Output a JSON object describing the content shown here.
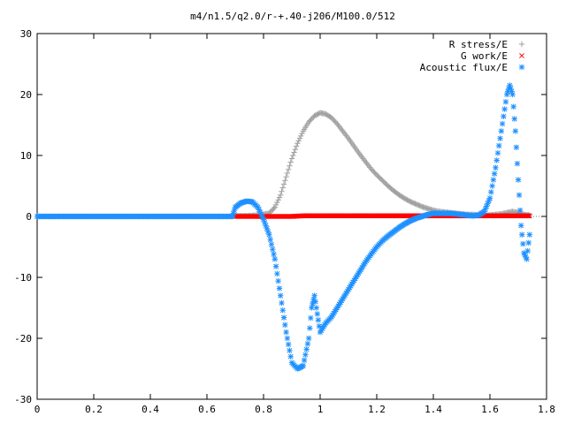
{
  "chart_data": {
    "type": "scatter",
    "title": "m4/n1.5/q2.0/r-+.40-j206/M100.0/512",
    "xlabel": "",
    "ylabel": "",
    "xlim": [
      0,
      1.8
    ],
    "ylim": [
      -30,
      30
    ],
    "x_ticks": [
      "0",
      "0.2",
      "0.4",
      "0.6",
      "0.8",
      "1",
      "1.2",
      "1.4",
      "1.6",
      "1.8"
    ],
    "y_ticks": [
      "30",
      "20",
      "10",
      "0",
      "-10",
      "-20",
      "-30"
    ],
    "legend_position": "top-right",
    "series": [
      {
        "name": "R stress/E",
        "marker": "+",
        "color": "#a0a0a0",
        "x": [
          0.7,
          0.74,
          0.78,
          0.82,
          0.84,
          0.86,
          0.88,
          0.9,
          0.92,
          0.94,
          0.96,
          0.98,
          1.0,
          1.02,
          1.04,
          1.06,
          1.08,
          1.1,
          1.12,
          1.14,
          1.16,
          1.18,
          1.2,
          1.22,
          1.24,
          1.26,
          1.28,
          1.3,
          1.32,
          1.34,
          1.36,
          1.38,
          1.4,
          1.42,
          1.44,
          1.46,
          1.48,
          1.5,
          1.52,
          1.54,
          1.56,
          1.58,
          1.6,
          1.62,
          1.64,
          1.66,
          1.68,
          1.7,
          1.72,
          1.74
        ],
        "y": [
          0.1,
          0.1,
          0.2,
          0.5,
          1.5,
          3.5,
          6.5,
          9.5,
          12.0,
          14.0,
          15.5,
          16.5,
          17.0,
          16.8,
          16.2,
          15.2,
          14.0,
          12.8,
          11.5,
          10.2,
          9.0,
          7.8,
          6.8,
          5.9,
          5.0,
          4.2,
          3.5,
          2.9,
          2.4,
          2.0,
          1.6,
          1.3,
          1.0,
          0.8,
          0.7,
          0.6,
          0.5,
          0.4,
          0.3,
          0.3,
          0.2,
          0.2,
          0.2,
          0.3,
          0.4,
          0.6,
          0.8,
          0.6,
          0.3,
          0.2
        ]
      },
      {
        "name": "G work/E",
        "marker": "x",
        "color": "#ff0000",
        "x": [
          0.7,
          0.74,
          0.78,
          0.82,
          0.86,
          0.9,
          0.94,
          0.98,
          1.02,
          1.06,
          1.1,
          1.14,
          1.18,
          1.22,
          1.26,
          1.3,
          1.34,
          1.38,
          1.42,
          1.46,
          1.5,
          1.54,
          1.58,
          1.62,
          1.66,
          1.7,
          1.74
        ],
        "y": [
          0.0,
          0.0,
          0.0,
          0.0,
          0.0,
          0.0,
          0.1,
          0.1,
          0.1,
          0.1,
          0.1,
          0.1,
          0.1,
          0.1,
          0.1,
          0.1,
          0.1,
          0.1,
          0.1,
          0.1,
          0.1,
          0.1,
          0.1,
          0.1,
          0.1,
          0.1,
          0.1
        ]
      },
      {
        "name": "Acoustic flux/E",
        "marker": "*",
        "color": "#1e90ff",
        "x": [
          0.0,
          0.05,
          0.1,
          0.15,
          0.2,
          0.25,
          0.3,
          0.35,
          0.4,
          0.45,
          0.5,
          0.55,
          0.6,
          0.65,
          0.69,
          0.7,
          0.72,
          0.74,
          0.76,
          0.78,
          0.8,
          0.82,
          0.84,
          0.86,
          0.88,
          0.9,
          0.92,
          0.94,
          0.96,
          0.97,
          0.98,
          0.99,
          1.0,
          1.02,
          1.04,
          1.06,
          1.08,
          1.1,
          1.12,
          1.14,
          1.16,
          1.18,
          1.2,
          1.22,
          1.24,
          1.26,
          1.28,
          1.3,
          1.32,
          1.34,
          1.36,
          1.38,
          1.4,
          1.42,
          1.44,
          1.46,
          1.48,
          1.5,
          1.52,
          1.54,
          1.56,
          1.58,
          1.6,
          1.62,
          1.64,
          1.66,
          1.67,
          1.68,
          1.69,
          1.7,
          1.71,
          1.72,
          1.73,
          1.74
        ],
        "y": [
          0,
          0,
          0,
          0,
          0,
          0,
          0,
          0,
          0,
          0,
          0,
          0,
          0,
          0,
          0,
          1.5,
          2.2,
          2.5,
          2.4,
          1.5,
          -0.5,
          -3.0,
          -7.0,
          -13.0,
          -19.0,
          -24.0,
          -25.0,
          -24.5,
          -20.0,
          -15.0,
          -13.0,
          -16.0,
          -19.0,
          -17.5,
          -16.5,
          -15.0,
          -13.5,
          -12.0,
          -10.5,
          -9.0,
          -7.5,
          -6.2,
          -5.0,
          -4.0,
          -3.2,
          -2.5,
          -1.8,
          -1.2,
          -0.7,
          -0.3,
          0.0,
          0.3,
          0.5,
          0.5,
          0.5,
          0.5,
          0.4,
          0.3,
          0.2,
          0.1,
          0.2,
          0.8,
          3.0,
          8.0,
          14.0,
          20.0,
          21.5,
          20.0,
          14.0,
          6.0,
          -1.5,
          -6.0,
          -7.0,
          -3.0
        ]
      }
    ]
  }
}
